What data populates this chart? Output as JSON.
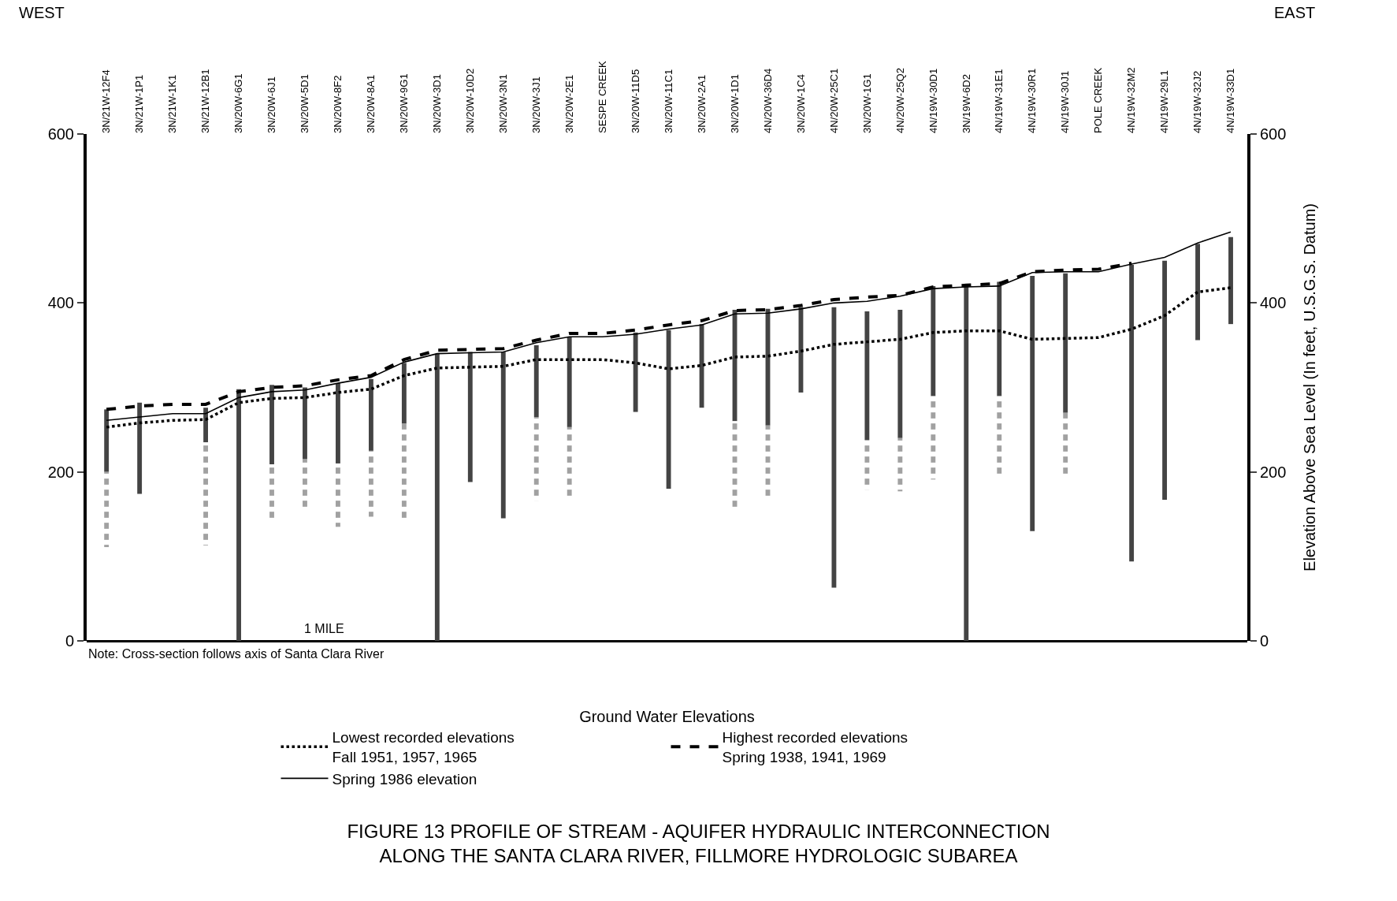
{
  "chart_data": {
    "type": "line",
    "title": "FIGURE 13 PROFILE OF STREAM - AQUIFER HYDRAULIC INTERCONNECTION\nALONG THE SANTA CLARA RIVER, FILLMORE HYDROLOGIC SUBAREA",
    "y2label": "Elevation Above Sea Level (In feet, U.S.G.S. Datum)",
    "legend_title": "Ground Water Elevations",
    "ylim": [
      0,
      600
    ],
    "yticks": [
      0,
      200,
      400,
      600
    ],
    "y2lim": [
      0,
      600
    ],
    "y2ticks": [
      0,
      200,
      400,
      600
    ],
    "legend": "bottom",
    "marker": "none",
    "categories": [
      "3N/21W-12F4",
      "3N/21W-1P1",
      "3N/21W-1K1",
      "3N/21W-12B1",
      "3N/20W-6G1",
      "3N/20W-6J1",
      "3N/20W-5D1",
      "3N/20W-8F2",
      "3N/20W-8A1",
      "3N/20W-9G1",
      "3N/20W-3D1",
      "3N/20W-10D2",
      "3N/20W-3N1",
      "3N/20W-3J1",
      "3N/20W-2E1",
      "SESPE CREEK",
      "3N/20W-11D5",
      "3N/20W-11C1",
      "3N/20W-2A1",
      "3N/20W-1D1",
      "4N/20W-36D4",
      "3N/20W-1C4",
      "4N/20W-25C1",
      "3N/20W-1G1",
      "4N/20W-25Q2",
      "4N/19W-30D1",
      "3N/19W-6D2",
      "4N/19W-31E1",
      "4N/19W-30R1",
      "4N/19W-30J1",
      "POLE CREEK",
      "4N/19W-32M2",
      "4N/19W-29L1",
      "4N/19W-32J2",
      "4N/19W-33D1"
    ],
    "series": [
      {
        "type": "bar",
        "color": "#444444",
        "line_style": "solid",
        "base": [
          200,
          174,
          null,
          235,
          0,
          209,
          215,
          210,
          225,
          257,
          0,
          188,
          145,
          265,
          253,
          null,
          271,
          180,
          276,
          260,
          255,
          294,
          63,
          238,
          240,
          290,
          0,
          290,
          130,
          270,
          null,
          94,
          167,
          356,
          375
        ],
        "values": [
          74,
          108,
          null,
          41,
          298,
          94,
          85,
          95,
          85,
          72,
          340,
          154,
          197,
          85,
          107,
          null,
          94,
          188,
          99,
          132,
          138,
          101,
          332,
          152,
          152,
          130,
          422,
          135,
          302,
          165,
          null,
          351,
          283,
          114,
          103
        ]
      },
      {
        "type": "bar",
        "color": "#444444",
        "line_style": "dashed",
        "base": [
          111,
          null,
          null,
          113,
          null,
          141,
          154,
          135,
          147,
          145,
          null,
          null,
          null,
          166,
          168,
          null,
          null,
          null,
          null,
          154,
          170,
          null,
          null,
          179,
          177,
          191,
          null,
          193,
          null,
          197,
          null,
          null,
          null,
          null,
          null
        ],
        "values": [
          89,
          null,
          null,
          122,
          null,
          68,
          61,
          75,
          78,
          112,
          null,
          null,
          null,
          99,
          85,
          null,
          null,
          null,
          null,
          106,
          85,
          null,
          null,
          59,
          63,
          99,
          null,
          97,
          null,
          73,
          null,
          null,
          null,
          null,
          null
        ]
      },
      {
        "name": "Lowest recorded elevations\nFall 1951, 1957, 1965",
        "color": "#000000",
        "line_style": "dotted",
        "values": [
          253,
          258,
          261,
          262,
          282,
          287,
          288,
          294,
          298,
          314,
          323,
          324,
          325,
          333,
          333,
          333,
          329,
          322,
          326,
          336,
          337,
          343,
          351,
          354,
          357,
          365,
          367,
          367,
          357,
          358,
          359,
          369,
          385,
          413,
          418
        ]
      },
      {
        "name": "Highest recorded elevations\nSpring 1938, 1941, 1969",
        "color": "#000000",
        "line_style": "dashed",
        "values": [
          274,
          278,
          280,
          280,
          295,
          300,
          302,
          309,
          314,
          333,
          344,
          345,
          346,
          356,
          364,
          364,
          368,
          374,
          379,
          391,
          392,
          397,
          404,
          407,
          409,
          419,
          421,
          423,
          437,
          439,
          440,
          447,
          null,
          null,
          null
        ]
      },
      {
        "name": "Spring 1986 elevation",
        "color": "#000000",
        "line_style": "solid",
        "values": [
          261,
          265,
          269,
          269,
          288,
          295,
          297,
          305,
          312,
          330,
          340,
          341,
          342,
          353,
          360,
          360,
          363,
          369,
          374,
          387,
          388,
          393,
          400,
          402,
          408,
          417,
          419,
          420,
          436,
          437,
          437,
          446,
          454,
          471,
          484
        ]
      }
    ],
    "annotations": [
      "WEST",
      "EAST",
      "1 MILE",
      "Note: Cross-section follows axis of Santa Clara River"
    ]
  }
}
